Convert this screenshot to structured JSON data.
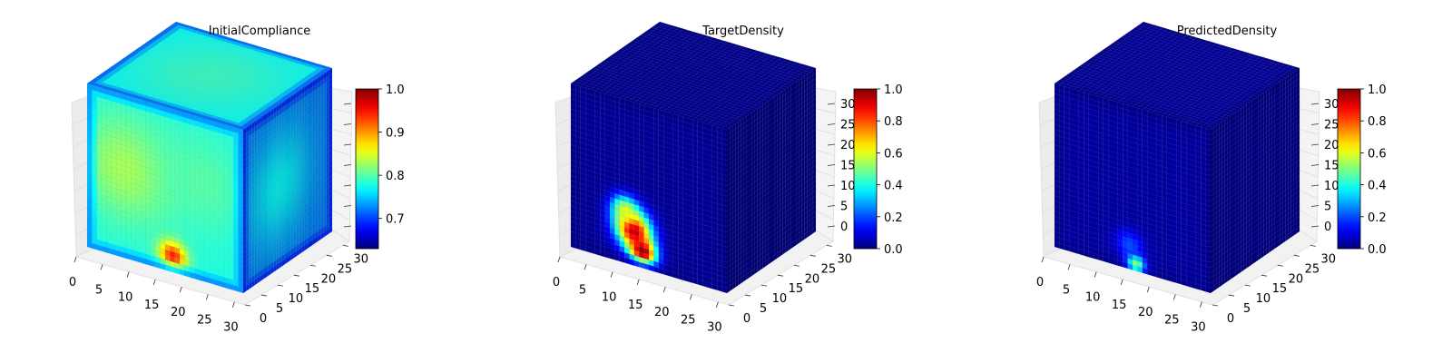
{
  "chart_data": [
    {
      "type": "heatmap",
      "title": "InitialCompliance",
      "axes": {
        "x_ticks": [
          "0",
          "5",
          "10",
          "15",
          "20",
          "25",
          "30"
        ],
        "y_ticks": [
          "0",
          "5",
          "10",
          "15",
          "20",
          "25",
          "30"
        ],
        "z_ticks": [],
        "x_range": [
          0,
          32
        ],
        "y_range": [
          0,
          32
        ],
        "z_range": [
          0,
          32
        ],
        "grid": true
      },
      "colorbar": {
        "colormap": "jet",
        "range": [
          0.63,
          1.0
        ],
        "ticks": [
          0.7,
          0.8,
          0.9,
          1.0
        ],
        "tick_labels": [
          "0.7",
          "0.8",
          "0.9",
          "1.0"
        ]
      },
      "faces": {
        "front": {
          "base": 0.78,
          "blobs": [
            [
              0.25,
              0.45,
              0.83,
              0.22
            ],
            [
              0.55,
              0.9,
              0.95,
              0.06
            ],
            [
              0.75,
              0.4,
              0.8,
              0.2
            ]
          ],
          "edge_low": 0.68
        },
        "top": {
          "base": 0.77,
          "blobs": [
            [
              0.5,
              0.5,
              0.79,
              0.3
            ]
          ],
          "edge_low": 0.66
        },
        "side": {
          "base": 0.72,
          "blobs": [
            [
              0.4,
              0.5,
              0.77,
              0.25
            ]
          ],
          "edge_low": 0.66
        }
      }
    },
    {
      "type": "heatmap",
      "title": "TargetDensity",
      "axes": {
        "x_ticks": [
          "0",
          "5",
          "10",
          "15",
          "20",
          "25",
          "30"
        ],
        "y_ticks": [
          "0",
          "5",
          "10",
          "15",
          "20",
          "25",
          "30"
        ],
        "z_ticks": [
          "0",
          "5",
          "10",
          "15",
          "20",
          "25",
          "30"
        ],
        "x_range": [
          0,
          32
        ],
        "y_range": [
          0,
          32
        ],
        "z_range": [
          0,
          32
        ],
        "grid": true
      },
      "colorbar": {
        "colormap": "jet",
        "range": [
          0.0,
          1.0
        ],
        "ticks": [
          0.0,
          0.2,
          0.4,
          0.6,
          0.8,
          1.0
        ],
        "tick_labels": [
          "0.0",
          "0.2",
          "0.4",
          "0.6",
          "0.8",
          "1.0"
        ]
      },
      "faces": {
        "front": {
          "base": 0.02,
          "blobs": [
            [
              0.4,
              0.78,
              1.0,
              0.08
            ],
            [
              0.46,
              0.9,
              1.0,
              0.06
            ],
            [
              0.35,
              0.68,
              0.6,
              0.06
            ]
          ],
          "edge_low": 0.0
        },
        "top": {
          "base": 0.02,
          "blobs": [],
          "edge_low": 0.0
        },
        "side": {
          "base": 0.01,
          "blobs": [],
          "edge_low": 0.0
        }
      }
    },
    {
      "type": "heatmap",
      "title": "PredictedDensity",
      "axes": {
        "x_ticks": [
          "0",
          "5",
          "10",
          "15",
          "20",
          "25",
          "30"
        ],
        "y_ticks": [
          "0",
          "5",
          "10",
          "15",
          "20",
          "25",
          "30"
        ],
        "z_ticks": [
          "0",
          "5",
          "10",
          "15",
          "20",
          "25",
          "30"
        ],
        "x_range": [
          0,
          32
        ],
        "y_range": [
          0,
          32
        ],
        "z_range": [
          0,
          32
        ],
        "grid": true
      },
      "colorbar": {
        "colormap": "jet",
        "range": [
          0.0,
          1.0
        ],
        "ticks": [
          0.0,
          0.2,
          0.4,
          0.6,
          0.8,
          1.0
        ],
        "tick_labels": [
          "0.0",
          "0.2",
          "0.4",
          "0.6",
          "0.8",
          "1.0"
        ]
      },
      "faces": {
        "front": {
          "base": 0.03,
          "blobs": [
            [
              0.52,
              0.97,
              0.85,
              0.04
            ],
            [
              0.48,
              0.85,
              0.2,
              0.06
            ]
          ],
          "edge_low": 0.0
        },
        "top": {
          "base": 0.03,
          "blobs": [],
          "edge_low": 0.0
        },
        "side": {
          "base": 0.02,
          "blobs": [],
          "edge_low": 0.0
        }
      }
    }
  ]
}
